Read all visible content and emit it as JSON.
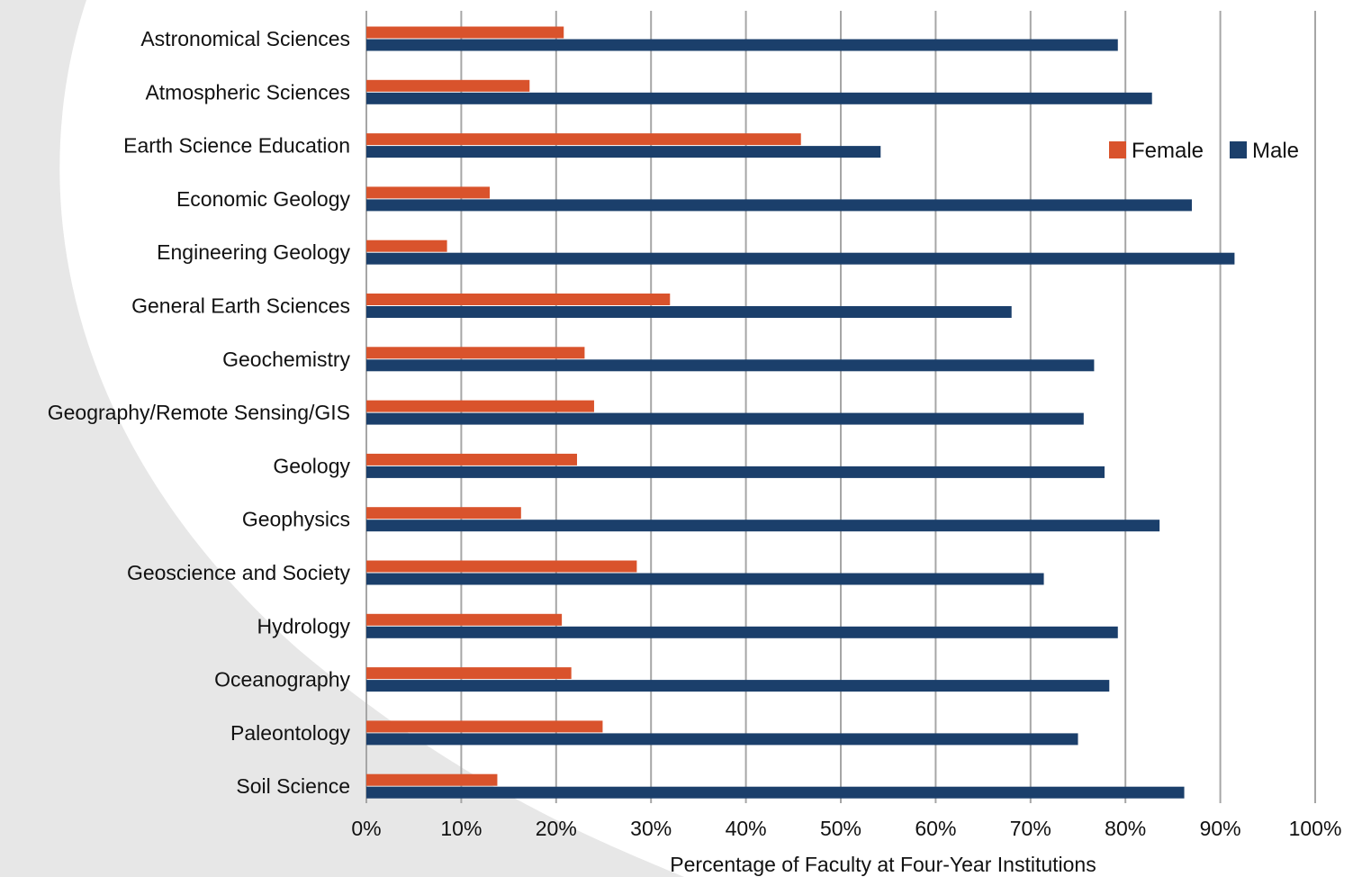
{
  "colors": {
    "female": "#d9532c",
    "male": "#1b3f6b",
    "background_shape": "#e7e7e7",
    "grid": "#a6a6a6"
  },
  "chart_data": {
    "type": "bar",
    "orientation": "horizontal",
    "title": "",
    "xlabel": "Percentage of Faculty at Four-Year Institutions",
    "ylabel": "",
    "xlim": [
      0,
      100
    ],
    "x_ticks": [
      "0%",
      "10%",
      "20%",
      "30%",
      "40%",
      "50%",
      "60%",
      "70%",
      "80%",
      "90%",
      "100%"
    ],
    "grid": "vertical",
    "legend_position": "top-right",
    "categories": [
      "Astronomical Sciences",
      "Atmospheric Sciences",
      "Earth Science Education",
      "Economic Geology",
      "Engineering Geology",
      "General Earth Sciences",
      "Geochemistry",
      "Geography/Remote Sensing/GIS",
      "Geology",
      "Geophysics",
      "Geoscience and Society",
      "Hydrology",
      "Oceanography",
      "Paleontology",
      "Soil Science"
    ],
    "series": [
      {
        "name": "Female",
        "values": [
          20.8,
          17.2,
          45.8,
          13.0,
          8.5,
          32.0,
          23.0,
          24.0,
          22.2,
          16.3,
          28.5,
          20.6,
          21.6,
          24.9,
          13.8
        ]
      },
      {
        "name": "Male",
        "values": [
          79.2,
          82.8,
          54.2,
          87.0,
          91.5,
          68.0,
          76.7,
          75.6,
          77.8,
          83.6,
          71.4,
          79.2,
          78.3,
          75.0,
          86.2
        ]
      }
    ]
  }
}
